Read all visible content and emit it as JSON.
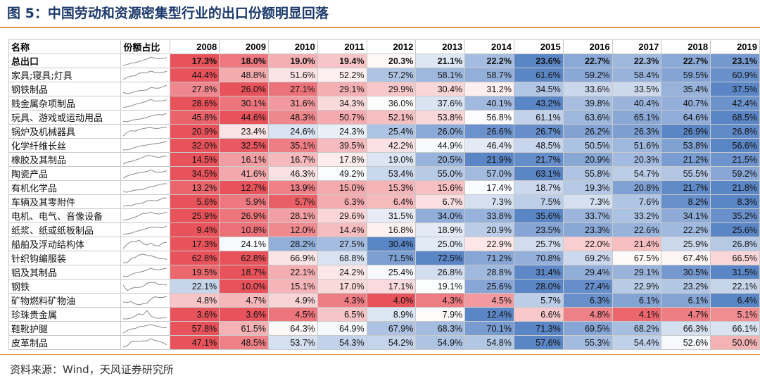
{
  "title": "图 5：中国劳动和资源密集型行业的出口份额明显回落",
  "source": "资料来源：Wind，天风证券研究所",
  "colors": {
    "low": "#e8525a",
    "mid": "#ffffff",
    "high": "#5b86c6",
    "rule": "#e39a46",
    "title": "#1c3a6b",
    "spark": "#8a8a8a"
  },
  "chart_data": {
    "type": "table",
    "headers": {
      "name": "名称",
      "spark": "份额占比",
      "years": [
        "2008",
        "2009",
        "2010",
        "2011",
        "2012",
        "2013",
        "2014",
        "2015",
        "2016",
        "2017",
        "2018",
        "2019"
      ]
    },
    "rows": [
      {
        "name": "总出口",
        "values": [
          17.3,
          18.0,
          19.0,
          19.4,
          20.3,
          21.1,
          22.2,
          23.6,
          22.7,
          22.3,
          22.7,
          23.1
        ],
        "labels": [
          "17.3%",
          "18.0%",
          "19.0%",
          "19.4%",
          "20.3%",
          "21.1%",
          "22.2%",
          "23.6%",
          "22.7%",
          "22.3%",
          "22.7%",
          "23.1%"
        ]
      },
      {
        "name": "家具;寝具;灯具",
        "values": [
          44.4,
          48.8,
          51.6,
          52.2,
          57.2,
          58.1,
          58.7,
          61.6,
          59.2,
          58.4,
          59.5,
          60.9
        ],
        "labels": [
          "44.4%",
          "48.8%",
          "51.6%",
          "52.2%",
          "57.2%",
          "58.1%",
          "58.7%",
          "61.6%",
          "59.2%",
          "58.4%",
          "59.5%",
          "60.9%"
        ]
      },
      {
        "name": "钢铁制品",
        "values": [
          27.8,
          26.0,
          27.1,
          29.1,
          29.9,
          30.4,
          31.2,
          34.5,
          33.6,
          33.5,
          35.4,
          37.5
        ],
        "labels": [
          "27.8%",
          "26.0%",
          "27.1%",
          "29.1%",
          "29.9%",
          "30.4%",
          "31.2%",
          "34.5%",
          "33.6%",
          "33.5%",
          "35.4%",
          "37.5%"
        ]
      },
      {
        "name": "贱金属杂项制品",
        "values": [
          28.6,
          30.1,
          31.6,
          34.3,
          36.0,
          37.6,
          40.1,
          43.2,
          39.8,
          40.4,
          40.7,
          42.4
        ],
        "labels": [
          "28.6%",
          "30.1%",
          "31.6%",
          "34.3%",
          "36.0%",
          "37.6%",
          "40.1%",
          "43.2%",
          "39.8%",
          "40.4%",
          "40.7%",
          "42.4%"
        ]
      },
      {
        "name": "玩具、游戏或运动用品",
        "values": [
          45.8,
          44.6,
          48.3,
          50.7,
          52.1,
          53.8,
          56.8,
          61.1,
          63.6,
          65.1,
          64.6,
          68.5
        ],
        "labels": [
          "45.8%",
          "44.6%",
          "48.3%",
          "50.7%",
          "52.1%",
          "53.8%",
          "56.8%",
          "61.1%",
          "63.6%",
          "65.1%",
          "64.6%",
          "68.5%"
        ]
      },
      {
        "name": "锅炉及机械器具",
        "values": [
          20.9,
          23.4,
          24.6,
          24.3,
          25.4,
          26.0,
          26.6,
          26.7,
          26.2,
          26.3,
          26.9,
          26.8
        ],
        "labels": [
          "20.9%",
          "23.4%",
          "24.6%",
          "24.3%",
          "25.4%",
          "26.0%",
          "26.6%",
          "26.7%",
          "26.2%",
          "26.3%",
          "26.9%",
          "26.8%"
        ]
      },
      {
        "name": "化学纤维长丝",
        "values": [
          32.0,
          32.5,
          35.1,
          39.5,
          42.2,
          44.9,
          46.4,
          48.5,
          50.5,
          51.6,
          53.8,
          56.6
        ],
        "labels": [
          "32.0%",
          "32.5%",
          "35.1%",
          "39.5%",
          "42.2%",
          "44.9%",
          "46.4%",
          "48.5%",
          "50.5%",
          "51.6%",
          "53.8%",
          "56.6%"
        ]
      },
      {
        "name": "橡胶及其制品",
        "values": [
          14.5,
          16.1,
          16.7,
          17.8,
          19.0,
          20.5,
          21.9,
          21.7,
          20.9,
          20.3,
          21.2,
          21.5
        ],
        "labels": [
          "14.5%",
          "16.1%",
          "16.7%",
          "17.8%",
          "19.0%",
          "20.5%",
          "21.9%",
          "21.7%",
          "20.9%",
          "20.3%",
          "21.2%",
          "21.5%"
        ]
      },
      {
        "name": "陶瓷产品",
        "values": [
          34.5,
          41.6,
          46.3,
          49.2,
          53.4,
          55.0,
          57.0,
          63.1,
          55.8,
          54.7,
          55.5,
          59.2
        ],
        "labels": [
          "34.5%",
          "41.6%",
          "46.3%",
          "49.2%",
          "53.4%",
          "55.0%",
          "57.0%",
          "63.1%",
          "55.8%",
          "54.7%",
          "55.5%",
          "59.2%"
        ]
      },
      {
        "name": "有机化学品",
        "values": [
          13.2,
          12.7,
          13.9,
          15.0,
          15.3,
          15.6,
          17.4,
          18.7,
          19.3,
          20.8,
          21.7,
          21.8
        ],
        "labels": [
          "13.2%",
          "12.7%",
          "13.9%",
          "15.0%",
          "15.3%",
          "15.6%",
          "17.4%",
          "18.7%",
          "19.3%",
          "20.8%",
          "21.7%",
          "21.8%"
        ]
      },
      {
        "name": "车辆及其零附件",
        "values": [
          5.6,
          5.9,
          5.7,
          6.3,
          6.4,
          6.7,
          7.3,
          7.5,
          7.3,
          7.6,
          8.2,
          8.3
        ],
        "labels": [
          "5.6%",
          "5.9%",
          "5.7%",
          "6.3%",
          "6.4%",
          "6.7%",
          "7.3%",
          "7.5%",
          "7.3%",
          "7.6%",
          "8.2%",
          "8.3%"
        ]
      },
      {
        "name": "电机、电气、音像设备",
        "values": [
          25.9,
          26.9,
          28.1,
          29.6,
          31.5,
          34.0,
          33.8,
          35.6,
          33.7,
          33.2,
          34.1,
          35.2
        ],
        "labels": [
          "25.9%",
          "26.9%",
          "28.1%",
          "29.6%",
          "31.5%",
          "34.0%",
          "33.8%",
          "35.6%",
          "33.7%",
          "33.2%",
          "34.1%",
          "35.2%"
        ]
      },
      {
        "name": "纸浆、纸或纸板制品",
        "values": [
          9.4,
          10.8,
          12.0,
          14.4,
          16.8,
          18.9,
          20.9,
          23.5,
          23.3,
          22.6,
          22.2,
          25.6
        ],
        "labels": [
          "9.4%",
          "10.8%",
          "12.0%",
          "14.4%",
          "16.8%",
          "18.9%",
          "20.9%",
          "23.5%",
          "23.3%",
          "22.6%",
          "22.2%",
          "25.6%"
        ]
      },
      {
        "name": "船舶及浮动结构体",
        "values": [
          17.3,
          24.1,
          28.2,
          27.5,
          30.4,
          25.0,
          22.9,
          25.7,
          22.0,
          21.4,
          25.9,
          26.8
        ],
        "labels": [
          "17.3%",
          "24.1%",
          "28.2%",
          "27.5%",
          "30.4%",
          "25.0%",
          "22.9%",
          "25.7%",
          "22.0%",
          "21.4%",
          "25.9%",
          "26.8%"
        ]
      },
      {
        "name": "针织钩编服装",
        "values": [
          62.8,
          62.8,
          66.9,
          68.8,
          71.5,
          72.5,
          71.2,
          70.8,
          69.2,
          67.5,
          67.4,
          66.5
        ],
        "labels": [
          "62.8%",
          "62.8%",
          "66.9%",
          "68.8%",
          "71.5%",
          "72.5%",
          "71.2%",
          "70.8%",
          "69.2%",
          "67.5%",
          "67.4%",
          "66.5%"
        ]
      },
      {
        "name": "铝及其制品",
        "values": [
          19.5,
          18.7,
          22.1,
          24.2,
          25.4,
          26.8,
          28.8,
          31.4,
          29.4,
          29.1,
          30.5,
          31.5
        ],
        "labels": [
          "19.5%",
          "18.7%",
          "22.1%",
          "24.2%",
          "25.4%",
          "26.8%",
          "28.8%",
          "31.4%",
          "29.4%",
          "29.1%",
          "30.5%",
          "31.5%"
        ]
      },
      {
        "name": "钢铁",
        "values": [
          22.1,
          10.0,
          15.1,
          17.0,
          17.1,
          19.1,
          25.6,
          28.0,
          27.4,
          22.9,
          23.2,
          22.1
        ],
        "labels": [
          "22.1%",
          "10.0%",
          "15.1%",
          "17.0%",
          "17.1%",
          "19.1%",
          "25.6%",
          "28.0%",
          "27.4%",
          "22.9%",
          "23.2%",
          "22.1%"
        ]
      },
      {
        "name": "矿物燃料矿物油",
        "values": [
          4.8,
          4.7,
          4.9,
          4.3,
          4.0,
          4.3,
          4.5,
          5.7,
          6.3,
          6.1,
          6.1,
          6.4
        ],
        "labels": [
          "4.8%",
          "4.7%",
          "4.9%",
          "4.3%",
          "4.0%",
          "4.3%",
          "4.5%",
          "5.7%",
          "6.3%",
          "6.1%",
          "6.1%",
          "6.4%"
        ]
      },
      {
        "name": "珍珠贵金属",
        "values": [
          3.6,
          3.6,
          4.5,
          6.5,
          8.9,
          7.9,
          12.4,
          6.6,
          4.8,
          4.1,
          4.7,
          5.1
        ],
        "labels": [
          "3.6%",
          "3.6%",
          "4.5%",
          "6.5%",
          "8.9%",
          "7.9%",
          "12.4%",
          "6.6%",
          "4.8%",
          "4.1%",
          "4.7%",
          "5.1%"
        ]
      },
      {
        "name": "鞋靴护腿",
        "values": [
          57.8,
          61.5,
          64.3,
          64.9,
          67.9,
          68.3,
          70.1,
          71.3,
          69.5,
          68.2,
          66.3,
          66.1
        ],
        "labels": [
          "57.8%",
          "61.5%",
          "64.3%",
          "64.9%",
          "67.9%",
          "68.3%",
          "70.1%",
          "71.3%",
          "69.5%",
          "68.2%",
          "66.3%",
          "66.1%"
        ]
      },
      {
        "name": "皮革制品",
        "values": [
          47.1,
          48.5,
          53.7,
          54.3,
          54.2,
          54.9,
          54.8,
          57.6,
          55.3,
          54.4,
          52.6,
          50.0
        ],
        "labels": [
          "47.1%",
          "48.5%",
          "53.7%",
          "54.3%",
          "54.2%",
          "54.9%",
          "54.8%",
          "57.6%",
          "55.3%",
          "54.4%",
          "52.6%",
          "50.0%"
        ]
      }
    ]
  }
}
